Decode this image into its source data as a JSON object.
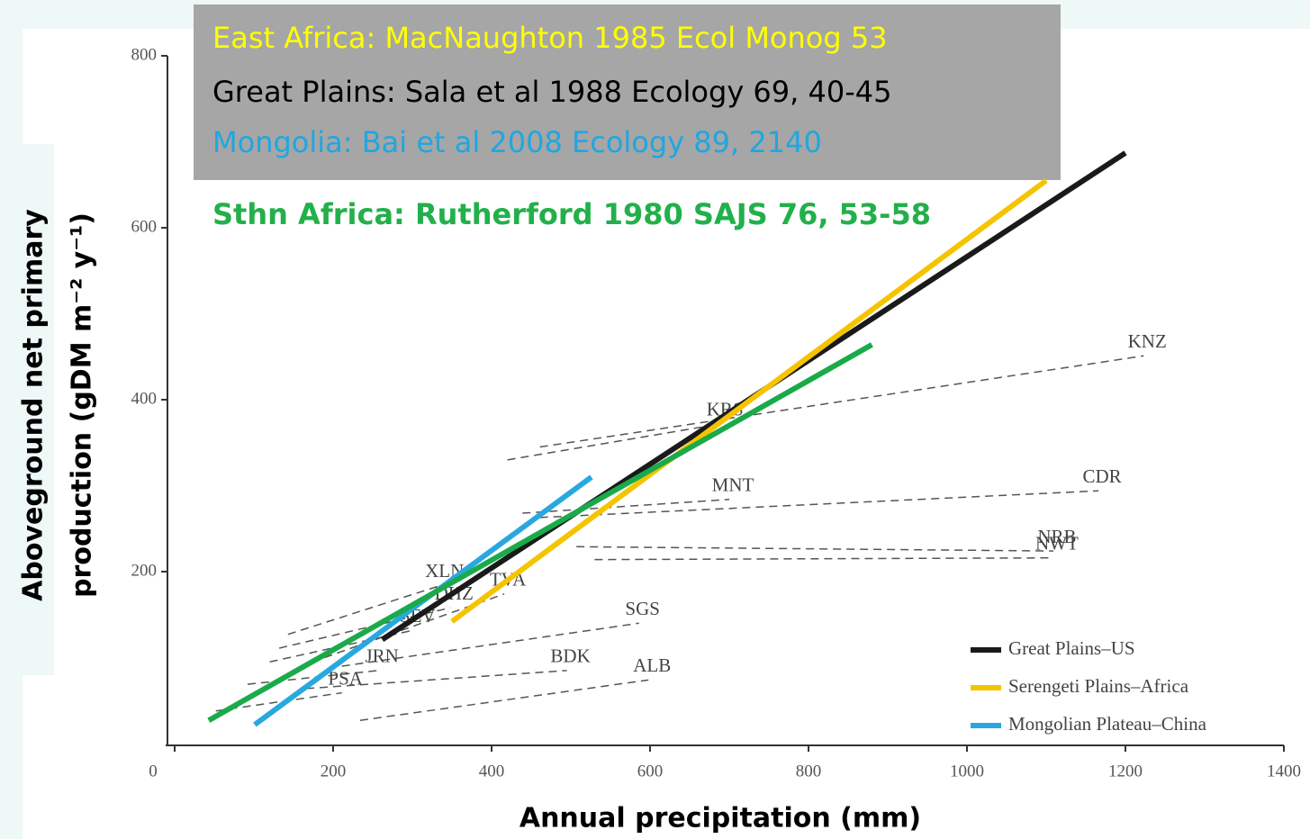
{
  "chart_data": {
    "type": "line",
    "x_label": "Annual precipitation (mm)",
    "y_label_lines": [
      "Aboveground net primary",
      "production (gDM m⁻² y⁻¹)"
    ],
    "annotations": [
      {
        "text": "East Africa: MacNaughton 1985 Ecol Monog 53",
        "color": "#ffff00"
      },
      {
        "text": "Great Plains: Sala et al 1988 Ecology 69, 40-45",
        "color": "#000000"
      },
      {
        "text": "Mongolia: Bai et al 2008 Ecology 89, 2140",
        "color": "#1fa7e0"
      },
      {
        "text": "Sthn Africa: Rutherford 1980 SAJS 76, 53-58",
        "color": "#22b04a"
      }
    ],
    "xlim": [
      0,
      1400
    ],
    "xticks": [
      0,
      200,
      400,
      600,
      800,
      1000,
      1200,
      1400
    ],
    "ylim": [
      0,
      800
    ],
    "yticks": [
      200,
      400,
      600,
      800
    ],
    "series": [
      {
        "name": "KNZ",
        "color": "#555555",
        "style": "site",
        "x": [
          461,
          1223
        ],
        "values": [
          345,
          451
        ]
      },
      {
        "name": "KRS",
        "color": "#555555",
        "style": "site",
        "x": [
          420,
          690
        ],
        "values": [
          330,
          372
        ]
      },
      {
        "name": "MNT",
        "color": "#555555",
        "style": "site",
        "x": [
          439,
          700
        ],
        "values": [
          268,
          284
        ]
      },
      {
        "name": "CDR",
        "color": "#555555",
        "style": "site",
        "x": [
          461,
          1166
        ],
        "values": [
          263,
          294
        ]
      },
      {
        "name": "NRB",
        "color": "#555555",
        "style": "site",
        "x": [
          507,
          1109
        ],
        "values": [
          229,
          224
        ]
      },
      {
        "name": "NWT",
        "color": "#555555",
        "style": "site",
        "x": [
          530,
          1109
        ],
        "values": [
          214,
          216
        ]
      },
      {
        "name": "SGS",
        "color": "#555555",
        "style": "site",
        "x": [
          211,
          586
        ],
        "values": [
          90,
          140
        ]
      },
      {
        "name": "TVA",
        "color": "#555555",
        "style": "site",
        "x": [
          189,
          416
        ],
        "values": [
          100,
          174
        ]
      },
      {
        "name": "XLN",
        "color": "#555555",
        "style": "site",
        "x": [
          143,
          336
        ],
        "values": [
          127,
          184
        ]
      },
      {
        "name": "DHZ",
        "color": "#555555",
        "style": "site",
        "x": [
          132,
          348
        ],
        "values": [
          111,
          158
        ]
      },
      {
        "name": "SEV",
        "color": "#555555",
        "style": "site",
        "x": [
          120,
          302
        ],
        "values": [
          95,
          132
        ]
      },
      {
        "name": "BDK",
        "color": "#555555",
        "style": "site",
        "x": [
          166,
          495
        ],
        "values": [
          64,
          85
        ]
      },
      {
        "name": "JRN",
        "color": "#555555",
        "style": "site",
        "x": [
          92,
          257
        ],
        "values": [
          69,
          85
        ]
      },
      {
        "name": "PSA",
        "color": "#555555",
        "style": "site",
        "x": [
          52,
          211
        ],
        "values": [
          38,
          59
        ]
      },
      {
        "name": "ALB",
        "color": "#555555",
        "style": "site",
        "x": [
          234,
          598
        ],
        "values": [
          27,
          74
        ]
      },
      {
        "name": "Great Plains–US",
        "color": "#1a1a1a",
        "style": "trend",
        "x": [
          262,
          1200
        ],
        "values": [
          121,
          687
        ]
      },
      {
        "name": "Serengeti Plains–Africa",
        "color": "#f5c400",
        "style": "trend",
        "x": [
          350,
          1100
        ],
        "values": [
          142,
          655
        ]
      },
      {
        "name": "Mongolian Plateau–China",
        "color": "#29a8e0",
        "style": "trend",
        "x": [
          101,
          526
        ],
        "values": [
          22,
          310
        ]
      },
      {
        "color": "#1aaa4a",
        "style": "trend",
        "x": [
          43,
          880
        ],
        "values": [
          27,
          464
        ]
      }
    ]
  }
}
